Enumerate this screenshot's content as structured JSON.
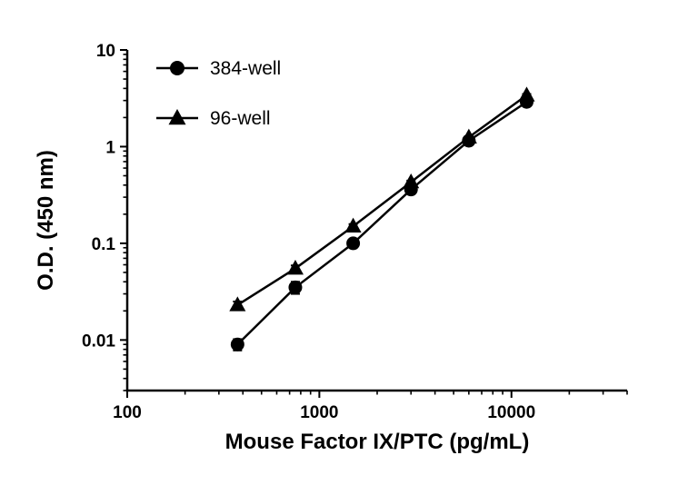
{
  "chart_data": {
    "type": "line",
    "title": "",
    "xlabel": "Mouse Factor IX/PTC (pg/mL)",
    "ylabel": "O.D. (450 nm)",
    "x_scale": "log",
    "y_scale": "log",
    "xlim": [
      100,
      40000
    ],
    "ylim": [
      0.003,
      10
    ],
    "x_major_ticks": [
      100,
      1000,
      10000
    ],
    "x_major_tick_labels": [
      "100",
      "1000",
      "10000"
    ],
    "y_major_ticks": [
      0.01,
      0.1,
      1,
      10
    ],
    "y_major_tick_labels": [
      "0.01",
      "0.1",
      "1",
      "10"
    ],
    "grid": false,
    "legend_position": "top-left-inside",
    "line_color": "#000000",
    "x": [
      375,
      750,
      1500,
      3000,
      6000,
      12000
    ],
    "series": [
      {
        "name": "384-well",
        "marker": "circle",
        "values": [
          0.009,
          0.035,
          0.1,
          0.36,
          1.15,
          2.9
        ],
        "errors": [
          0.0012,
          0.005,
          0.006,
          0.012,
          0.03,
          0.08
        ]
      },
      {
        "name": "96-well",
        "marker": "triangle",
        "values": [
          0.023,
          0.055,
          0.15,
          0.43,
          1.25,
          3.4
        ],
        "errors": [
          0.002,
          0.004,
          0.008,
          0.015,
          0.03,
          0.1
        ]
      }
    ]
  }
}
